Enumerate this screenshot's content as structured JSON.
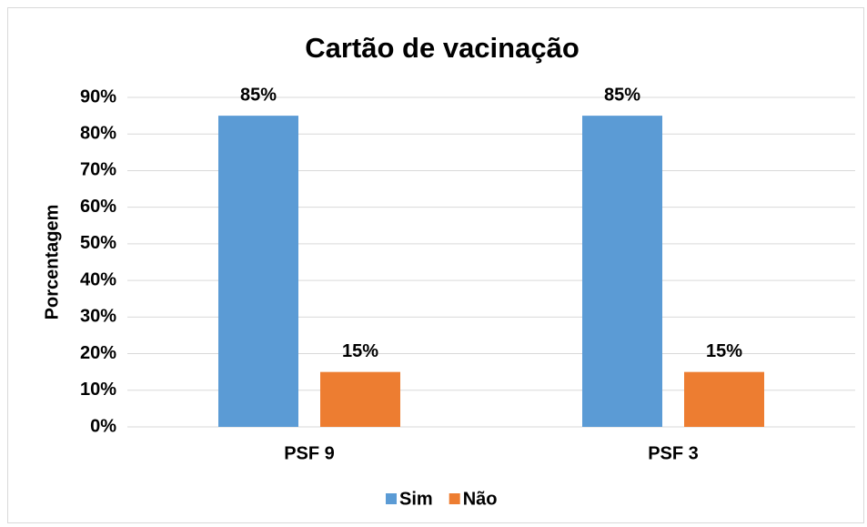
{
  "chart_data": {
    "type": "bar",
    "title": "Cartão de vacinação",
    "y_label": "Porcentagem",
    "categories": [
      "PSF 9",
      "PSF 3"
    ],
    "series": [
      {
        "name": "Sim",
        "color": "#5b9bd5",
        "values": [
          85,
          85
        ],
        "value_labels": [
          "85%",
          "85%"
        ]
      },
      {
        "name": "Não",
        "color": "#ed7d31",
        "values": [
          15,
          15
        ],
        "value_labels": [
          "15%",
          "15%"
        ]
      }
    ],
    "ylim": [
      0,
      90
    ],
    "yticks": [
      {
        "value": 0,
        "label": "0%"
      },
      {
        "value": 10,
        "label": "10%"
      },
      {
        "value": 20,
        "label": "20%"
      },
      {
        "value": 30,
        "label": "30%"
      },
      {
        "value": 40,
        "label": "40%"
      },
      {
        "value": 50,
        "label": "50%"
      },
      {
        "value": 60,
        "label": "60%"
      },
      {
        "value": 70,
        "label": "70%"
      },
      {
        "value": 80,
        "label": "80%"
      },
      {
        "value": 90,
        "label": "90%"
      }
    ],
    "grid": true,
    "legend": "bottom"
  }
}
